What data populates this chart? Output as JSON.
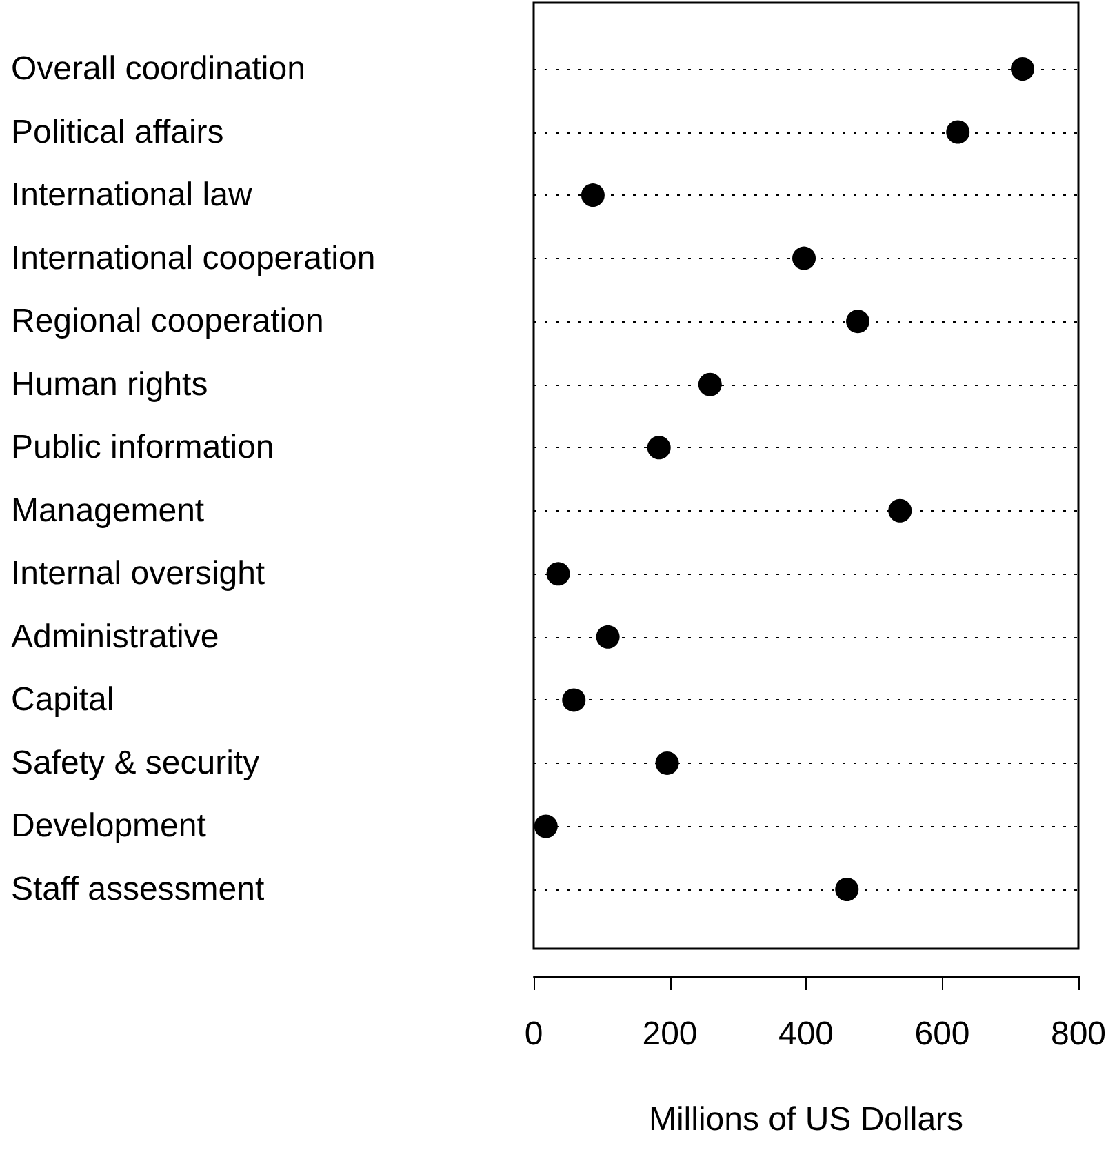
{
  "chart_data": {
    "type": "scatter",
    "orientation": "horizontal",
    "xlabel": "Millions of US Dollars",
    "categories": [
      "Overall coordination",
      "Political affairs",
      "International law",
      "International cooperation",
      "Regional cooperation",
      "Human rights",
      "Public information",
      "Management",
      "Internal oversight",
      "Administrative",
      "Capital",
      "Safety & security",
      "Development",
      "Staff assessment"
    ],
    "values": [
      718,
      623,
      87,
      397,
      476,
      259,
      184,
      538,
      36,
      109,
      59,
      196,
      18,
      460
    ],
    "color": "#000000",
    "xlim": [
      0,
      800
    ],
    "xticks": [
      0,
      200,
      400,
      600,
      800
    ],
    "grid": "y",
    "marker": "circle"
  }
}
